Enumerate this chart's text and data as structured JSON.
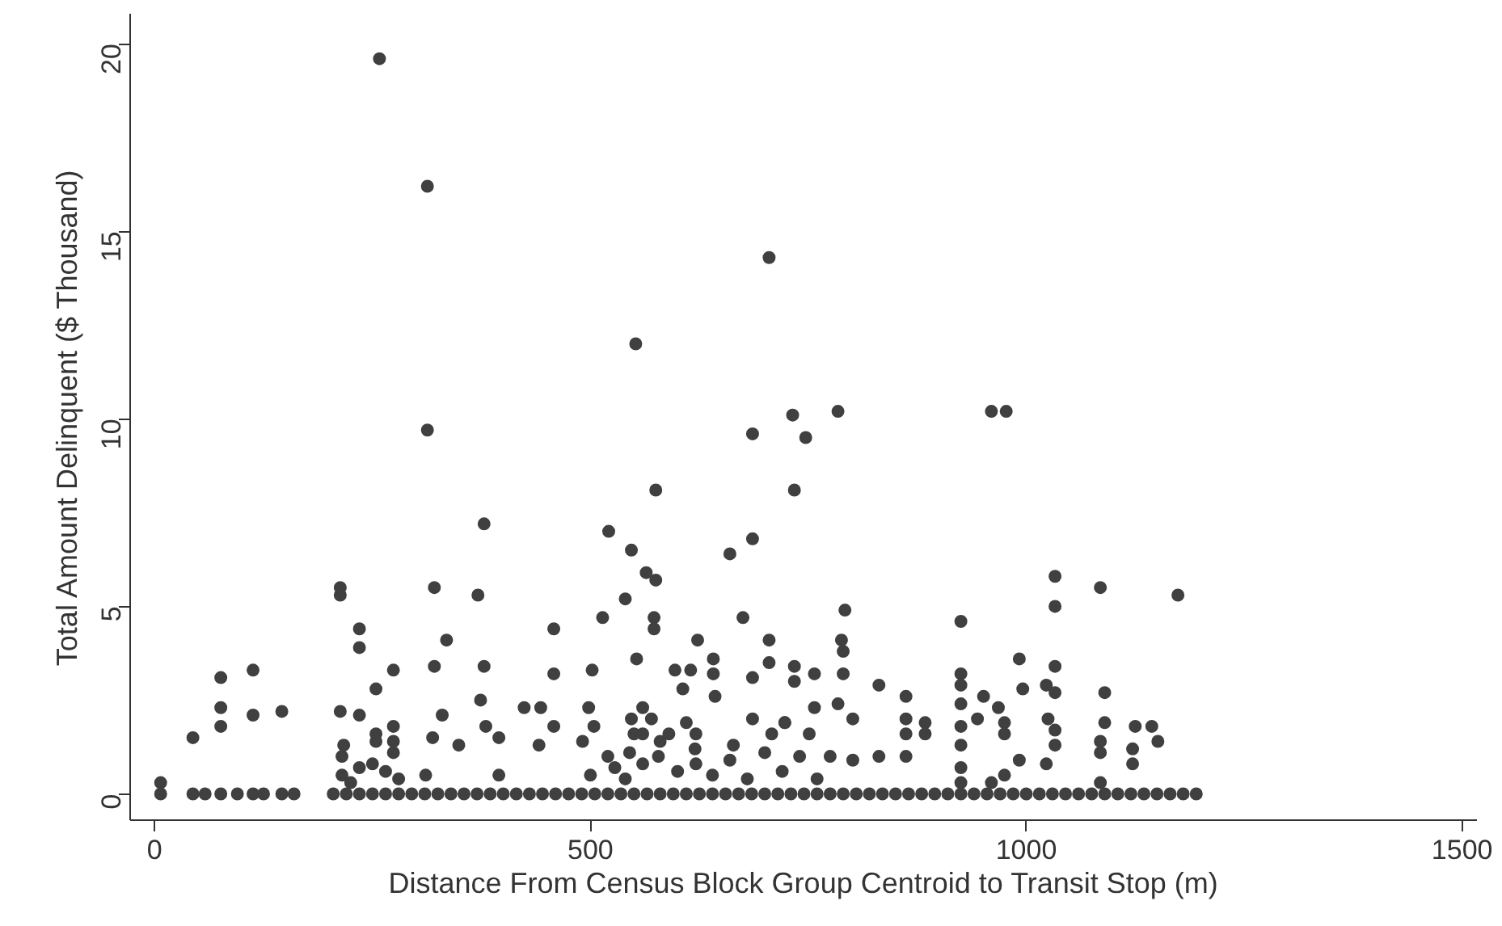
{
  "chart_data": {
    "type": "scatter",
    "xlabel": "Distance From Census Block Group Centroid to Transit Stop (m)",
    "ylabel": "Total Amount Delinquent ($ Thousand)",
    "xlim": [
      -28,
      1517
    ],
    "ylim": [
      -0.7,
      20.8
    ],
    "xticks": [
      0,
      500,
      1000,
      1500
    ],
    "yticks": [
      0,
      5,
      10,
      15,
      20
    ],
    "marker": "circle",
    "series": [
      {
        "color": "#404040",
        "x": [
          258,
          313,
          705,
          552,
          313,
          732,
          686,
          747,
          575,
          784,
          960,
          977,
          734,
          378,
          521,
          547,
          686,
          660,
          213,
          213,
          321,
          371,
          564,
          575,
          540,
          514,
          573,
          675,
          235,
          235,
          458,
          335,
          573,
          623,
          705,
          76,
          113,
          274,
          321,
          378,
          458,
          502,
          254,
          553,
          597,
          615,
          641,
          641,
          686,
          705,
          76,
          76,
          113,
          146,
          44,
          213,
          235,
          330,
          374,
          424,
          443,
          498,
          606,
          643,
          686,
          723,
          734,
          254,
          254,
          274,
          274,
          274,
          319,
          349,
          395,
          380,
          458,
          441,
          491,
          504,
          547,
          560,
          590,
          621,
          664,
          708,
          217,
          235,
          311,
          395,
          528,
          578,
          621,
          1033,
          1033,
          1085,
          1174,
          925,
          792,
          788,
          790,
          790,
          734,
          757,
          992,
          1033,
          925,
          925,
          831,
          862,
          996,
          1023,
          1033,
          1090,
          951,
          925,
          968,
          784,
          757,
          723,
          944,
          862,
          884,
          975,
          1025,
          1090,
          1125,
          1144,
          1151,
          925,
          925,
          925,
          925,
          975,
          992,
          975,
          1033,
          1033,
          1023,
          1085,
          1085,
          1085,
          1122,
          1122,
          862,
          862,
          884,
          831,
          801,
          801,
          751,
          775,
          960,
          7,
          215,
          215,
          225,
          250,
          265,
          280,
          500,
          520,
          540,
          550,
          560,
          570,
          580,
          600,
          620,
          640,
          660,
          680,
          700,
          720,
          740,
          760,
          560,
          545,
          610,
          7,
          44,
          58,
          76,
          95,
          113,
          125,
          146,
          160,
          205,
          220,
          235,
          250,
          265,
          280,
          295,
          310,
          325,
          340,
          355,
          370,
          385,
          400,
          415,
          430,
          445,
          460,
          475,
          490,
          505,
          520,
          535,
          550,
          565,
          580,
          595,
          610,
          625,
          640,
          655,
          670,
          685,
          700,
          715,
          730,
          745,
          760,
          775,
          790,
          805,
          820,
          835,
          850,
          865,
          880,
          895,
          910,
          925,
          940,
          955,
          970,
          985,
          1000,
          1015,
          1030,
          1045,
          1060,
          1075,
          1090,
          1105,
          1120,
          1135,
          1150,
          1165,
          1180,
          1195
        ],
        "values": [
          19.6,
          16.2,
          14.3,
          12.0,
          9.7,
          10.1,
          9.6,
          9.5,
          8.1,
          10.2,
          10.2,
          10.2,
          8.1,
          7.2,
          7.0,
          6.5,
          6.8,
          6.4,
          5.5,
          5.3,
          5.5,
          5.3,
          5.9,
          5.7,
          5.2,
          4.7,
          4.7,
          4.7,
          4.4,
          3.9,
          4.4,
          4.1,
          4.4,
          4.1,
          4.1,
          3.1,
          3.3,
          3.3,
          3.4,
          3.4,
          3.2,
          3.3,
          2.8,
          3.6,
          3.3,
          3.3,
          3.6,
          3.2,
          3.1,
          3.5,
          2.3,
          1.8,
          2.1,
          2.2,
          1.5,
          2.2,
          2.1,
          2.1,
          2.5,
          2.3,
          2.3,
          2.3,
          2.8,
          2.6,
          2.0,
          1.9,
          3.0,
          1.6,
          1.4,
          1.8,
          1.4,
          1.1,
          1.5,
          1.3,
          1.5,
          1.8,
          1.8,
          1.3,
          1.4,
          1.8,
          2.0,
          1.6,
          1.6,
          1.6,
          1.3,
          1.6,
          1.3,
          0.7,
          0.5,
          0.5,
          0.7,
          1.0,
          0.8,
          5.8,
          5.0,
          5.5,
          5.3,
          4.6,
          4.9,
          4.1,
          3.8,
          3.2,
          3.4,
          3.2,
          3.6,
          3.4,
          3.2,
          2.9,
          2.9,
          2.6,
          2.8,
          2.9,
          2.7,
          2.7,
          2.6,
          2.4,
          2.3,
          2.4,
          2.3,
          1.9,
          2.0,
          2.0,
          1.9,
          1.9,
          2.0,
          1.9,
          1.8,
          1.8,
          1.4,
          1.8,
          1.3,
          0.7,
          0.3,
          1.6,
          0.9,
          0.5,
          1.7,
          1.3,
          0.8,
          1.4,
          1.1,
          0.3,
          1.2,
          0.8,
          1.6,
          1.0,
          1.6,
          1.0,
          2.0,
          0.9,
          1.6,
          1.0,
          0.3,
          0.3,
          0.5,
          1.0,
          0.3,
          0.8,
          0.6,
          0.4,
          0.5,
          1.0,
          0.4,
          1.6,
          0.8,
          2.0,
          1.4,
          0.6,
          1.2,
          0.5,
          0.9,
          0.4,
          1.1,
          0.6,
          1.0,
          0.4,
          2.3,
          1.1,
          1.9,
          0,
          0,
          0,
          0,
          0,
          0,
          0,
          0,
          0,
          0,
          0,
          0,
          0,
          0,
          0,
          0,
          0,
          0,
          0,
          0,
          0,
          0,
          0,
          0,
          0,
          0,
          0,
          0,
          0,
          0,
          0,
          0,
          0,
          0,
          0,
          0,
          0,
          0,
          0,
          0,
          0,
          0,
          0,
          0,
          0,
          0,
          0,
          0,
          0,
          0,
          0,
          0,
          0,
          0,
          0,
          0,
          0,
          0,
          0,
          0,
          0,
          0,
          0,
          0,
          0,
          0,
          0,
          0,
          0,
          0,
          0,
          0,
          0,
          0,
          0,
          0
        ]
      }
    ]
  }
}
